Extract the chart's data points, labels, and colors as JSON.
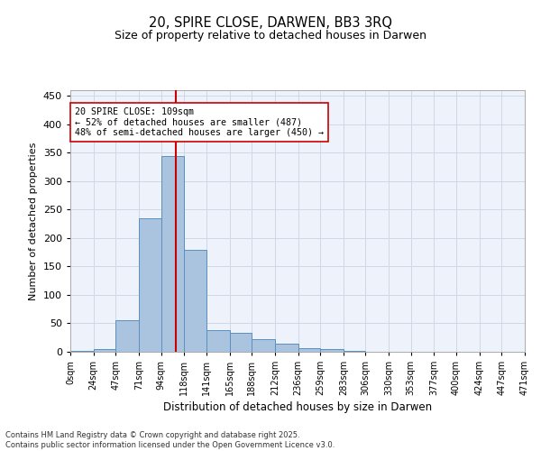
{
  "title1": "20, SPIRE CLOSE, DARWEN, BB3 3RQ",
  "title2": "Size of property relative to detached houses in Darwen",
  "xlabel": "Distribution of detached houses by size in Darwen",
  "ylabel": "Number of detached properties",
  "bins": [
    0,
    24,
    47,
    71,
    94,
    118,
    141,
    165,
    188,
    212,
    236,
    259,
    283,
    306,
    330,
    353,
    377,
    400,
    424,
    447,
    471
  ],
  "bin_labels": [
    "0sqm",
    "24sqm",
    "47sqm",
    "71sqm",
    "94sqm",
    "118sqm",
    "141sqm",
    "165sqm",
    "188sqm",
    "212sqm",
    "236sqm",
    "259sqm",
    "283sqm",
    "306sqm",
    "330sqm",
    "353sqm",
    "377sqm",
    "400sqm",
    "424sqm",
    "447sqm",
    "471sqm"
  ],
  "values": [
    2,
    4,
    55,
    235,
    345,
    180,
    38,
    33,
    23,
    14,
    6,
    5,
    2,
    0,
    0,
    0,
    0,
    0,
    0,
    0
  ],
  "bar_color": "#aac4e0",
  "bar_edge_color": "#5a8fc0",
  "vline_x": 109,
  "vline_color": "#cc0000",
  "annotation_text": "20 SPIRE CLOSE: 109sqm\n← 52% of detached houses are smaller (487)\n48% of semi-detached houses are larger (450) →",
  "annotation_box_color": "#ffffff",
  "annotation_box_edge_color": "#cc0000",
  "ylim": [
    0,
    460
  ],
  "yticks": [
    0,
    50,
    100,
    150,
    200,
    250,
    300,
    350,
    400,
    450
  ],
  "grid_color": "#d0d8e8",
  "background_color": "#eef2fa",
  "footer_line1": "Contains HM Land Registry data © Crown copyright and database right 2025.",
  "footer_line2": "Contains public sector information licensed under the Open Government Licence v3.0."
}
